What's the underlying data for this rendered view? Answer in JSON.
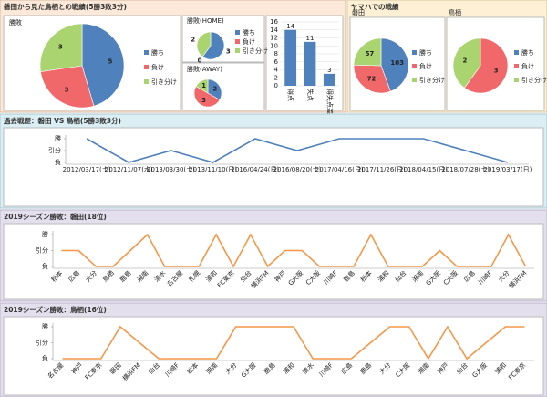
{
  "panels": [
    {
      "title": "磐田から見た鳥栖との戦績(5勝3敗3分)"
    },
    {
      "title": "ヤマハでの戦績"
    }
  ],
  "chart_data": [
    {
      "type": "pie",
      "title": "勝敗",
      "categories": [
        "勝ち",
        "負け",
        "引き分け"
      ],
      "values": [
        5,
        3,
        3
      ],
      "colors": [
        "#4f81bd",
        "#f0686a",
        "#a9d46f"
      ],
      "legend": true
    },
    {
      "type": "pie",
      "title": "勝敗(HOME)",
      "categories": [
        "勝ち",
        "負け",
        "引き分け"
      ],
      "values": [
        3,
        0,
        2
      ],
      "colors": [
        "#4f81bd",
        "#f0686a",
        "#a9d46f"
      ],
      "legend": true
    },
    {
      "type": "pie",
      "title": "勝敗(AWAY)",
      "values": [
        2,
        3,
        1
      ],
      "colors": [
        "#4f81bd",
        "#f0686a",
        "#a9d46f"
      ],
      "legend": false
    },
    {
      "type": "bar",
      "categories": [
        "得点",
        "失点",
        "得失点差"
      ],
      "values": [
        14,
        11,
        3
      ],
      "color": "#4f81bd",
      "ylim": [
        0,
        16
      ],
      "yticks": [
        0,
        2,
        4,
        6,
        8,
        10,
        12,
        14,
        16
      ],
      "grid": true
    },
    {
      "type": "pie",
      "title": "磐田",
      "categories": [
        "勝ち",
        "負け",
        "引き分け"
      ],
      "values": [
        103,
        72,
        57
      ],
      "colors": [
        "#4f81bd",
        "#f0686a",
        "#a9d46f"
      ],
      "legend": true
    },
    {
      "type": "pie",
      "title": "鳥栖",
      "categories": [
        "勝ち",
        "負け",
        "引き分け"
      ],
      "values": [
        0,
        3,
        2
      ],
      "colors": [
        "#4f81bd",
        "#f0686a",
        "#a9d46f"
      ],
      "legend": true
    },
    {
      "type": "line",
      "title": "過去戦歴：磐田 VS 鳥栖(5勝3敗3分)",
      "color": "#4f81bd",
      "categories": [
        "2012/03/17(土)",
        "2012/11/07(水)",
        "2013/03/30(土)",
        "2013/11/10(日)",
        "2016/04/24(日)",
        "2016/08/20(土)",
        "2017/04/16(日)",
        "2017/11/26(日)",
        "2018/04/15(日)",
        "2018/07/28(土)",
        "2019/03/17(日)"
      ],
      "values": [
        2,
        0,
        1,
        0,
        2,
        1,
        2,
        2,
        2,
        1,
        0
      ],
      "ylim": [
        0,
        2
      ],
      "yticks": [
        {
          "value": 0,
          "label": "負"
        },
        {
          "value": 1,
          "label": "引分"
        },
        {
          "value": 2,
          "label": "勝"
        }
      ]
    },
    {
      "type": "line",
      "title": "2019シーズン勝敗：磐田(18位)",
      "color": "#f79646",
      "categories": [
        "松本",
        "広島",
        "大分",
        "鳥栖",
        "鹿島",
        "湘南",
        "清水",
        "名古屋",
        "札幌",
        "浦和",
        "FC東京",
        "仙台",
        "横浜FM",
        "神戸",
        "G大阪",
        "C大阪",
        "川崎F",
        "鹿島",
        "松本",
        "浦和",
        "仙台",
        "湘南",
        "G大阪",
        "C大阪",
        "広島",
        "川崎F",
        "大分",
        "横浜FM"
      ],
      "values": [
        1,
        1,
        0,
        0,
        1,
        2,
        0,
        0,
        0,
        2,
        0,
        2,
        0,
        1,
        1,
        0,
        0,
        0,
        2,
        0,
        0,
        0,
        1,
        0,
        0,
        0,
        2,
        0
      ],
      "ylim": [
        0,
        2
      ],
      "yticks": [
        {
          "value": 0,
          "label": "負"
        },
        {
          "value": 1,
          "label": "引分"
        },
        {
          "value": 2,
          "label": "勝"
        }
      ]
    },
    {
      "type": "line",
      "title": "2019シーズン勝敗：鳥栖(16位)",
      "color": "#f79646",
      "categories": [
        "名古屋",
        "神戸",
        "FC東京",
        "磐田",
        "横浜FM",
        "仙台",
        "川崎F",
        "松本",
        "湘南",
        "大分",
        "G大阪",
        "鹿島",
        "浦和",
        "清水",
        "川崎F",
        "広島",
        "鹿島",
        "大分",
        "C大阪",
        "湘南",
        "神戸",
        "仙台",
        "G大阪",
        "浦和",
        "FC東京"
      ],
      "values": [
        0,
        0,
        0,
        2,
        1,
        0,
        0,
        0,
        0,
        2,
        2,
        2,
        2,
        0,
        0,
        0,
        1,
        2,
        2,
        0,
        2,
        0,
        1,
        2,
        2
      ],
      "ylim": [
        0,
        2
      ],
      "yticks": [
        {
          "value": 0,
          "label": "負"
        },
        {
          "value": 1,
          "label": "引分"
        },
        {
          "value": 2,
          "label": "勝"
        }
      ]
    }
  ]
}
